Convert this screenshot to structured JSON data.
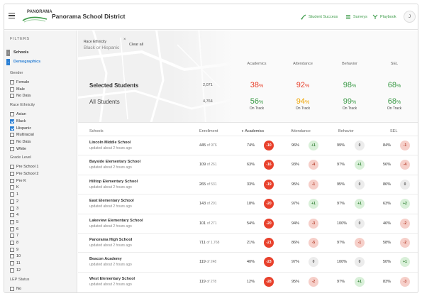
{
  "header": {
    "logo_text": "PANORAMA",
    "title": "Panorama School District",
    "nav": [
      {
        "label": "Student Success",
        "icon": "student-success-icon"
      },
      {
        "label": "Surveys",
        "icon": "surveys-icon"
      },
      {
        "label": "Playbook",
        "icon": "playbook-icon"
      }
    ],
    "avatar_initial": "J",
    "accent_color": "#3c9b48"
  },
  "sidebar": {
    "title": "FILTERS",
    "tabs": [
      {
        "label": "Schools",
        "mark": "›"
      },
      {
        "label": "Demographics",
        "mark": "›"
      }
    ],
    "sections": [
      {
        "label": "Gender",
        "options": [
          {
            "label": "Female",
            "checked": false
          },
          {
            "label": "Male",
            "checked": false
          },
          {
            "label": "No Data",
            "checked": false
          }
        ]
      },
      {
        "label": "Race Ethnicity",
        "options": [
          {
            "label": "Asian",
            "checked": false
          },
          {
            "label": "Black",
            "checked": true
          },
          {
            "label": "Hispanic",
            "checked": true
          },
          {
            "label": "Multiracial",
            "checked": false
          },
          {
            "label": "No Data",
            "checked": false
          },
          {
            "label": "White",
            "checked": false
          }
        ]
      },
      {
        "label": "Grade Level",
        "options": [
          {
            "label": "Pre School 1",
            "checked": false
          },
          {
            "label": "Pre School 2",
            "checked": false
          },
          {
            "label": "Pre K",
            "checked": false
          },
          {
            "label": "K",
            "checked": false
          },
          {
            "label": "1",
            "checked": false
          },
          {
            "label": "2",
            "checked": false
          },
          {
            "label": "3",
            "checked": false
          },
          {
            "label": "4",
            "checked": false
          },
          {
            "label": "5",
            "checked": false
          },
          {
            "label": "6",
            "checked": false
          },
          {
            "label": "7",
            "checked": false
          },
          {
            "label": "8",
            "checked": false
          },
          {
            "label": "9",
            "checked": false
          },
          {
            "label": "10",
            "checked": false
          },
          {
            "label": "11",
            "checked": false
          },
          {
            "label": "12",
            "checked": false
          }
        ]
      },
      {
        "label": "LEP Status",
        "options": [
          {
            "label": "No",
            "checked": false
          }
        ]
      }
    ]
  },
  "filter_chip": {
    "label": "Race Ethnicity",
    "value_a": "Black",
    "joiner": "or",
    "value_b": "Hispanic",
    "clear": "Clear all"
  },
  "summary": {
    "headers": [
      "Academics",
      "Attendance",
      "Behavior",
      "SEL"
    ],
    "selected": {
      "label": "Selected Students",
      "count": "2,071",
      "values": [
        "38",
        "92",
        "98",
        "68"
      ]
    },
    "all": {
      "label": "All Students",
      "count": "4,764",
      "values": [
        "56",
        "94",
        "99",
        "68"
      ],
      "status": "On Track"
    },
    "pct_sign": "%"
  },
  "table": {
    "headers": [
      "Schools",
      "Enrollment",
      "Academics",
      "Attendance",
      "Behavior",
      "SEL"
    ],
    "sort_icon": "▼",
    "rows": [
      {
        "name": "Lincoln Middle School",
        "updated": "updated about 2 hours ago",
        "enroll": "445",
        "of": "of 976",
        "acad": "74%",
        "acad_d": "-10",
        "att": "96%",
        "att_d": "+1",
        "beh": "99%",
        "beh_d": "0",
        "sel": "84%",
        "sel_d": "-1"
      },
      {
        "name": "Bayside Elementary School",
        "updated": "updated about 2 hours ago",
        "enroll": "109",
        "of": "of 261",
        "acad": "63%",
        "acad_d": "-16",
        "att": "93%",
        "att_d": "-4",
        "beh": "97%",
        "beh_d": "+1",
        "sel": "56%",
        "sel_d": "-4"
      },
      {
        "name": "Hilltop Elementary School",
        "updated": "updated about 2 hours ago",
        "enroll": "265",
        "of": "of 531",
        "acad": "33%",
        "acad_d": "-19",
        "att": "95%",
        "att_d": "-1",
        "beh": "95%",
        "beh_d": "0",
        "sel": "86%",
        "sel_d": "0"
      },
      {
        "name": "East Elementary School",
        "updated": "updated about 2 hours ago",
        "enroll": "143",
        "of": "of 291",
        "acad": "18%",
        "acad_d": "-20",
        "att": "97%",
        "att_d": "+1",
        "beh": "97%",
        "beh_d": "+1",
        "sel": "63%",
        "sel_d": "+2"
      },
      {
        "name": "Lakeview Elementary School",
        "updated": "updated about 2 hours ago",
        "enroll": "101",
        "of": "of 271",
        "acad": "54%",
        "acad_d": "-20",
        "att": "94%",
        "att_d": "-3",
        "beh": "100%",
        "beh_d": "0",
        "sel": "46%",
        "sel_d": "-2"
      },
      {
        "name": "Panorama High School",
        "updated": "updated about 2 hours ago",
        "enroll": "711",
        "of": "of 1,768",
        "acad": "21%",
        "acad_d": "-21",
        "att": "86%",
        "att_d": "-5",
        "beh": "97%",
        "beh_d": "-1",
        "sel": "58%",
        "sel_d": "-2"
      },
      {
        "name": "Beacon Academy",
        "updated": "updated about 2 hours ago",
        "enroll": "119",
        "of": "of 248",
        "acad": "40%",
        "acad_d": "-23",
        "att": "97%",
        "att_d": "0",
        "beh": "100%",
        "beh_d": "0",
        "sel": "50%",
        "sel_d": "+1"
      },
      {
        "name": "West Elementary School",
        "updated": "updated about 2 hours ago",
        "enroll": "119",
        "of": "of 278",
        "acad": "12%",
        "acad_d": "-28",
        "att": "95%",
        "att_d": "-2",
        "beh": "97%",
        "beh_d": "+1",
        "sel": "83%",
        "sel_d": "-3"
      }
    ]
  },
  "colors": {
    "red": "#e8412c",
    "orange": "#f0a500",
    "green": "#3c9b48",
    "link": "#2a7fd4"
  }
}
